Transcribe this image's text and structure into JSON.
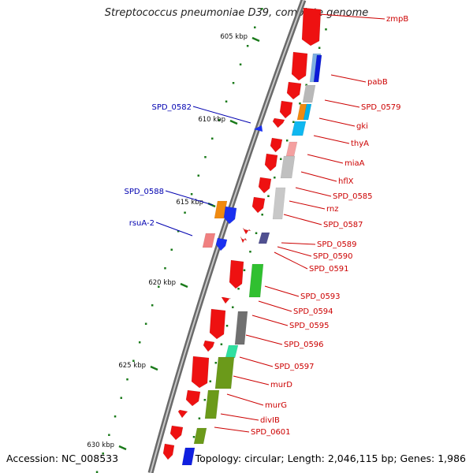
{
  "title": "Streptococcus pneumoniae D39, complete genome",
  "footer": {
    "accession": "Accession: NC_008533",
    "summary": "Topology: circular; Length: 2,046,115 bp; Genes: 1,986"
  },
  "colors": {
    "backbone": "#777777",
    "tick_marks": "#1a7a1a",
    "gene_label_forward": "#cc0000",
    "gene_label_reverse": "#0000b0"
  },
  "ticks": [
    "605 kbp",
    "610 kbp",
    "615 kbp",
    "620 kbp",
    "625 kbp",
    "630 kbp"
  ],
  "gene_labels": [
    {
      "id": "zmpB",
      "strand": "forward"
    },
    {
      "id": "pabB",
      "strand": "forward"
    },
    {
      "id": "SPD_0579",
      "strand": "forward"
    },
    {
      "id": "gki",
      "strand": "forward"
    },
    {
      "id": "thyA",
      "strand": "forward"
    },
    {
      "id": "miaA",
      "strand": "forward"
    },
    {
      "id": "hflX",
      "strand": "forward"
    },
    {
      "id": "SPD_0585",
      "strand": "forward"
    },
    {
      "id": "rnz",
      "strand": "forward"
    },
    {
      "id": "SPD_0587",
      "strand": "forward"
    },
    {
      "id": "SPD_0589",
      "strand": "forward"
    },
    {
      "id": "SPD_0590",
      "strand": "forward"
    },
    {
      "id": "SPD_0591",
      "strand": "forward"
    },
    {
      "id": "SPD_0593",
      "strand": "forward"
    },
    {
      "id": "SPD_0594",
      "strand": "forward"
    },
    {
      "id": "SPD_0595",
      "strand": "forward"
    },
    {
      "id": "SPD_0596",
      "strand": "forward"
    },
    {
      "id": "SPD_0597",
      "strand": "forward"
    },
    {
      "id": "murD",
      "strand": "forward"
    },
    {
      "id": "murG",
      "strand": "forward"
    },
    {
      "id": "divIB",
      "strand": "forward"
    },
    {
      "id": "SPD_0601",
      "strand": "forward"
    },
    {
      "id": "SPD_0582",
      "strand": "reverse"
    },
    {
      "id": "SPD_0588",
      "strand": "reverse"
    },
    {
      "id": "rsuA-2",
      "strand": "reverse"
    }
  ]
}
